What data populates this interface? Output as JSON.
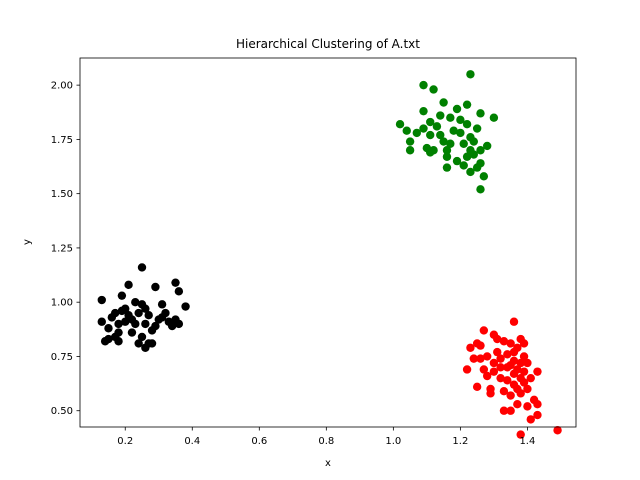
{
  "chart_data": {
    "type": "scatter",
    "title": "Hierarchical Clustering of A.txt",
    "xlabel": "x",
    "ylabel": "y",
    "xlim": [
      0.065,
      1.545
    ],
    "ylim": [
      0.425,
      2.125
    ],
    "xticks": [
      {
        "value": 0.2,
        "label": "0.2"
      },
      {
        "value": 0.4,
        "label": "0.4"
      },
      {
        "value": 0.6,
        "label": "0.6"
      },
      {
        "value": 0.8,
        "label": "0.8"
      },
      {
        "value": 1.0,
        "label": "1.0"
      },
      {
        "value": 1.2,
        "label": "1.2"
      },
      {
        "value": 1.4,
        "label": "1.4"
      }
    ],
    "yticks": [
      {
        "value": 0.5,
        "label": "0.50"
      },
      {
        "value": 0.75,
        "label": "0.75"
      },
      {
        "value": 1.0,
        "label": "1.00"
      },
      {
        "value": 1.25,
        "label": "1.25"
      },
      {
        "value": 1.5,
        "label": "1.50"
      },
      {
        "value": 1.75,
        "label": "1.75"
      },
      {
        "value": 2.0,
        "label": "2.00"
      }
    ],
    "grid": false,
    "legend": "none",
    "series": [
      {
        "color": "#000000",
        "points": [
          [
            0.13,
            1.01
          ],
          [
            0.13,
            0.91
          ],
          [
            0.14,
            0.82
          ],
          [
            0.15,
            0.88
          ],
          [
            0.15,
            0.83
          ],
          [
            0.16,
            0.93
          ],
          [
            0.17,
            0.95
          ],
          [
            0.17,
            0.84
          ],
          [
            0.18,
            0.9
          ],
          [
            0.18,
            0.86
          ],
          [
            0.18,
            0.82
          ],
          [
            0.19,
            0.96
          ],
          [
            0.19,
            1.03
          ],
          [
            0.2,
            0.91
          ],
          [
            0.2,
            0.97
          ],
          [
            0.21,
            1.08
          ],
          [
            0.21,
            0.94
          ],
          [
            0.22,
            0.86
          ],
          [
            0.22,
            0.92
          ],
          [
            0.23,
            1.0
          ],
          [
            0.23,
            0.9
          ],
          [
            0.24,
            0.81
          ],
          [
            0.24,
            0.95
          ],
          [
            0.25,
            1.16
          ],
          [
            0.25,
            0.99
          ],
          [
            0.25,
            0.84
          ],
          [
            0.26,
            0.79
          ],
          [
            0.26,
            0.9
          ],
          [
            0.26,
            0.97
          ],
          [
            0.27,
            0.81
          ],
          [
            0.27,
            0.94
          ],
          [
            0.28,
            0.87
          ],
          [
            0.28,
            0.81
          ],
          [
            0.29,
            1.07
          ],
          [
            0.29,
            0.89
          ],
          [
            0.3,
            0.92
          ],
          [
            0.31,
            0.99
          ],
          [
            0.31,
            0.93
          ],
          [
            0.32,
            0.95
          ],
          [
            0.33,
            0.91
          ],
          [
            0.34,
            0.89
          ],
          [
            0.35,
            1.09
          ],
          [
            0.35,
            0.92
          ],
          [
            0.36,
            1.05
          ],
          [
            0.36,
            0.9
          ],
          [
            0.38,
            0.98
          ]
        ]
      },
      {
        "color": "#008000",
        "points": [
          [
            1.02,
            1.82
          ],
          [
            1.04,
            1.79
          ],
          [
            1.05,
            1.74
          ],
          [
            1.05,
            1.7
          ],
          [
            1.07,
            1.78
          ],
          [
            1.09,
            1.8
          ],
          [
            1.09,
            1.88
          ],
          [
            1.09,
            2.0
          ],
          [
            1.1,
            1.71
          ],
          [
            1.11,
            1.69
          ],
          [
            1.11,
            1.77
          ],
          [
            1.11,
            1.83
          ],
          [
            1.12,
            1.98
          ],
          [
            1.12,
            1.7
          ],
          [
            1.13,
            1.81
          ],
          [
            1.14,
            1.86
          ],
          [
            1.14,
            1.77
          ],
          [
            1.15,
            1.92
          ],
          [
            1.15,
            1.74
          ],
          [
            1.16,
            1.7
          ],
          [
            1.16,
            1.67
          ],
          [
            1.16,
            1.62
          ],
          [
            1.17,
            1.85
          ],
          [
            1.17,
            1.73
          ],
          [
            1.18,
            1.79
          ],
          [
            1.19,
            1.89
          ],
          [
            1.19,
            1.65
          ],
          [
            1.2,
            1.84
          ],
          [
            1.2,
            1.78
          ],
          [
            1.21,
            1.73
          ],
          [
            1.21,
            1.63
          ],
          [
            1.22,
            1.82
          ],
          [
            1.22,
            1.67
          ],
          [
            1.22,
            1.91
          ],
          [
            1.23,
            1.6
          ],
          [
            1.23,
            1.7
          ],
          [
            1.23,
            1.76
          ],
          [
            1.23,
            2.05
          ],
          [
            1.24,
            1.74
          ],
          [
            1.24,
            1.68
          ],
          [
            1.25,
            1.62
          ],
          [
            1.25,
            1.8
          ],
          [
            1.26,
            1.87
          ],
          [
            1.26,
            1.7
          ],
          [
            1.26,
            1.64
          ],
          [
            1.26,
            1.52
          ],
          [
            1.27,
            1.58
          ],
          [
            1.28,
            1.72
          ],
          [
            1.3,
            1.85
          ]
        ]
      },
      {
        "color": "#ff0000",
        "points": [
          [
            1.22,
            0.69
          ],
          [
            1.23,
            0.79
          ],
          [
            1.24,
            0.74
          ],
          [
            1.25,
            0.81
          ],
          [
            1.25,
            0.61
          ],
          [
            1.26,
            0.74
          ],
          [
            1.26,
            0.8
          ],
          [
            1.27,
            0.87
          ],
          [
            1.27,
            0.69
          ],
          [
            1.28,
            0.75
          ],
          [
            1.28,
            0.66
          ],
          [
            1.29,
            0.6
          ],
          [
            1.29,
            0.58
          ],
          [
            1.3,
            0.85
          ],
          [
            1.3,
            0.72
          ],
          [
            1.3,
            0.68
          ],
          [
            1.31,
            0.77
          ],
          [
            1.31,
            0.83
          ],
          [
            1.32,
            0.65
          ],
          [
            1.32,
            0.7
          ],
          [
            1.32,
            0.74
          ],
          [
            1.33,
            0.59
          ],
          [
            1.33,
            0.5
          ],
          [
            1.33,
            0.82
          ],
          [
            1.34,
            0.7
          ],
          [
            1.34,
            0.64
          ],
          [
            1.34,
            0.76
          ],
          [
            1.35,
            0.5
          ],
          [
            1.35,
            0.71
          ],
          [
            1.35,
            0.81
          ],
          [
            1.35,
            0.57
          ],
          [
            1.36,
            0.91
          ],
          [
            1.36,
            0.73
          ],
          [
            1.36,
            0.62
          ],
          [
            1.36,
            0.67
          ],
          [
            1.36,
            0.77
          ],
          [
            1.37,
            0.79
          ],
          [
            1.37,
            0.6
          ],
          [
            1.37,
            0.53
          ],
          [
            1.37,
            0.69
          ],
          [
            1.38,
            0.83
          ],
          [
            1.38,
            0.72
          ],
          [
            1.38,
            0.65
          ],
          [
            1.38,
            0.58
          ],
          [
            1.38,
            0.39
          ],
          [
            1.39,
            0.81
          ],
          [
            1.39,
            0.68
          ],
          [
            1.39,
            0.63
          ],
          [
            1.39,
            0.75
          ],
          [
            1.4,
            0.52
          ],
          [
            1.4,
            0.6
          ],
          [
            1.4,
            0.72
          ],
          [
            1.41,
            0.65
          ],
          [
            1.41,
            0.46
          ],
          [
            1.42,
            0.55
          ],
          [
            1.43,
            0.48
          ],
          [
            1.43,
            0.53
          ],
          [
            1.43,
            0.68
          ],
          [
            1.49,
            0.41
          ]
        ]
      }
    ]
  }
}
